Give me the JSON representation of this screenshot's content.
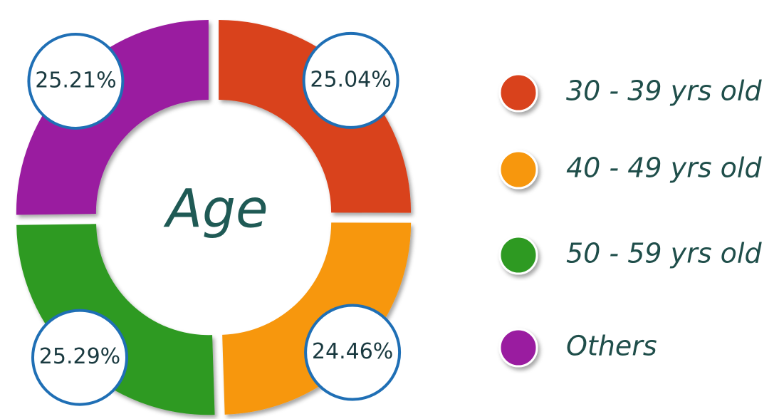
{
  "chart_data": {
    "type": "pie",
    "title": "Age",
    "categories": [
      "30 - 39 yrs old",
      "40 - 49 yrs old",
      "50 - 59 yrs old",
      "Others"
    ],
    "values": [
      25.04,
      24.46,
      25.29,
      25.21
    ],
    "value_labels": [
      "25.04%",
      "24.46%",
      "25.29%",
      "25.21%"
    ],
    "colors": [
      "#d9421c",
      "#f7970f",
      "#2e9a22",
      "#9a1ea0"
    ],
    "legend": "right"
  }
}
